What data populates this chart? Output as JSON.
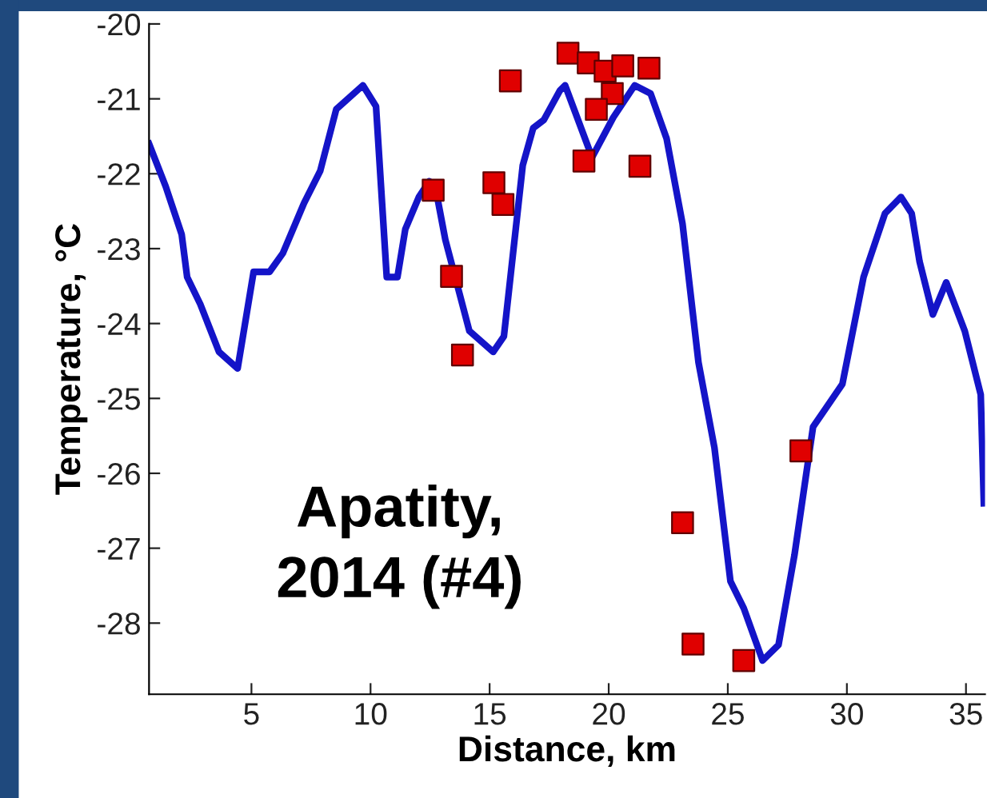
{
  "chart_data": {
    "type": "line",
    "xlabel": "Distance, km",
    "ylabel": "Temperature, °C",
    "annotations": [
      "Apatity,\n2014 (#4)"
    ],
    "xlim": [
      0.7,
      35.8
    ],
    "ylim": [
      -28.95,
      -20
    ],
    "xticks": [
      5,
      10,
      15,
      20,
      25,
      30,
      35
    ],
    "yticks": [
      -28,
      -27,
      -26,
      -25,
      -24,
      -23,
      -22,
      -21,
      -20
    ],
    "grid": false,
    "legend": false,
    "series": [
      {
        "color": "#1414c8",
        "marker": "none",
        "line_style": "solid",
        "x": [
          0.7,
          1.4,
          2.07,
          2.3,
          2.85,
          3.64,
          4.42,
          5.09,
          5.76,
          6.32,
          7.21,
          7.89,
          8.56,
          9.68,
          10.23,
          10.68,
          11.13,
          11.46,
          12.03,
          12.47,
          12.8,
          13.14,
          14.15,
          15.15,
          15.6,
          16.39,
          16.83,
          17.28,
          17.95,
          18.17,
          19.3,
          20.19,
          21.09,
          21.76,
          22.43,
          23.1,
          23.77,
          24.44,
          25.11,
          25.67,
          26.46,
          27.13,
          27.8,
          28.58,
          29.81,
          30.7,
          31.6,
          32.27,
          32.72,
          33.05,
          33.61,
          34.17,
          34.95,
          35.62,
          35.75
        ],
        "values": [
          -21.6,
          -22.17,
          -22.81,
          -23.38,
          -23.74,
          -24.38,
          -24.6,
          -23.31,
          -23.31,
          -23.06,
          -22.39,
          -21.96,
          -21.14,
          -20.82,
          -21.1,
          -23.38,
          -23.38,
          -22.74,
          -22.31,
          -22.1,
          -22.31,
          -22.88,
          -24.1,
          -24.38,
          -24.17,
          -21.89,
          -21.39,
          -21.28,
          -20.89,
          -20.82,
          -21.78,
          -21.25,
          -20.82,
          -20.93,
          -21.53,
          -22.67,
          -24.52,
          -25.66,
          -27.44,
          -27.8,
          -28.5,
          -28.29,
          -27.09,
          -25.38,
          -24.81,
          -23.38,
          -22.53,
          -22.31,
          -22.53,
          -23.17,
          -23.88,
          -23.45,
          -24.1,
          -24.95,
          -26.4
        ]
      },
      {
        "type": "scatter",
        "color": "#e00000",
        "marker": "square",
        "x": [
          12.63,
          13.4,
          13.86,
          15.18,
          15.56,
          15.87,
          18.29,
          19.14,
          19.85,
          20.59,
          21.69,
          20.15,
          19.48,
          18.96,
          21.31,
          28.07,
          23.1,
          23.54,
          25.67
        ],
        "values": [
          -22.22,
          -23.37,
          -24.42,
          -22.12,
          -22.41,
          -20.76,
          -20.39,
          -20.52,
          -20.63,
          -20.56,
          -20.59,
          -20.93,
          -21.14,
          -21.83,
          -21.9,
          -25.7,
          -26.66,
          -28.28,
          -28.5
        ]
      }
    ]
  }
}
